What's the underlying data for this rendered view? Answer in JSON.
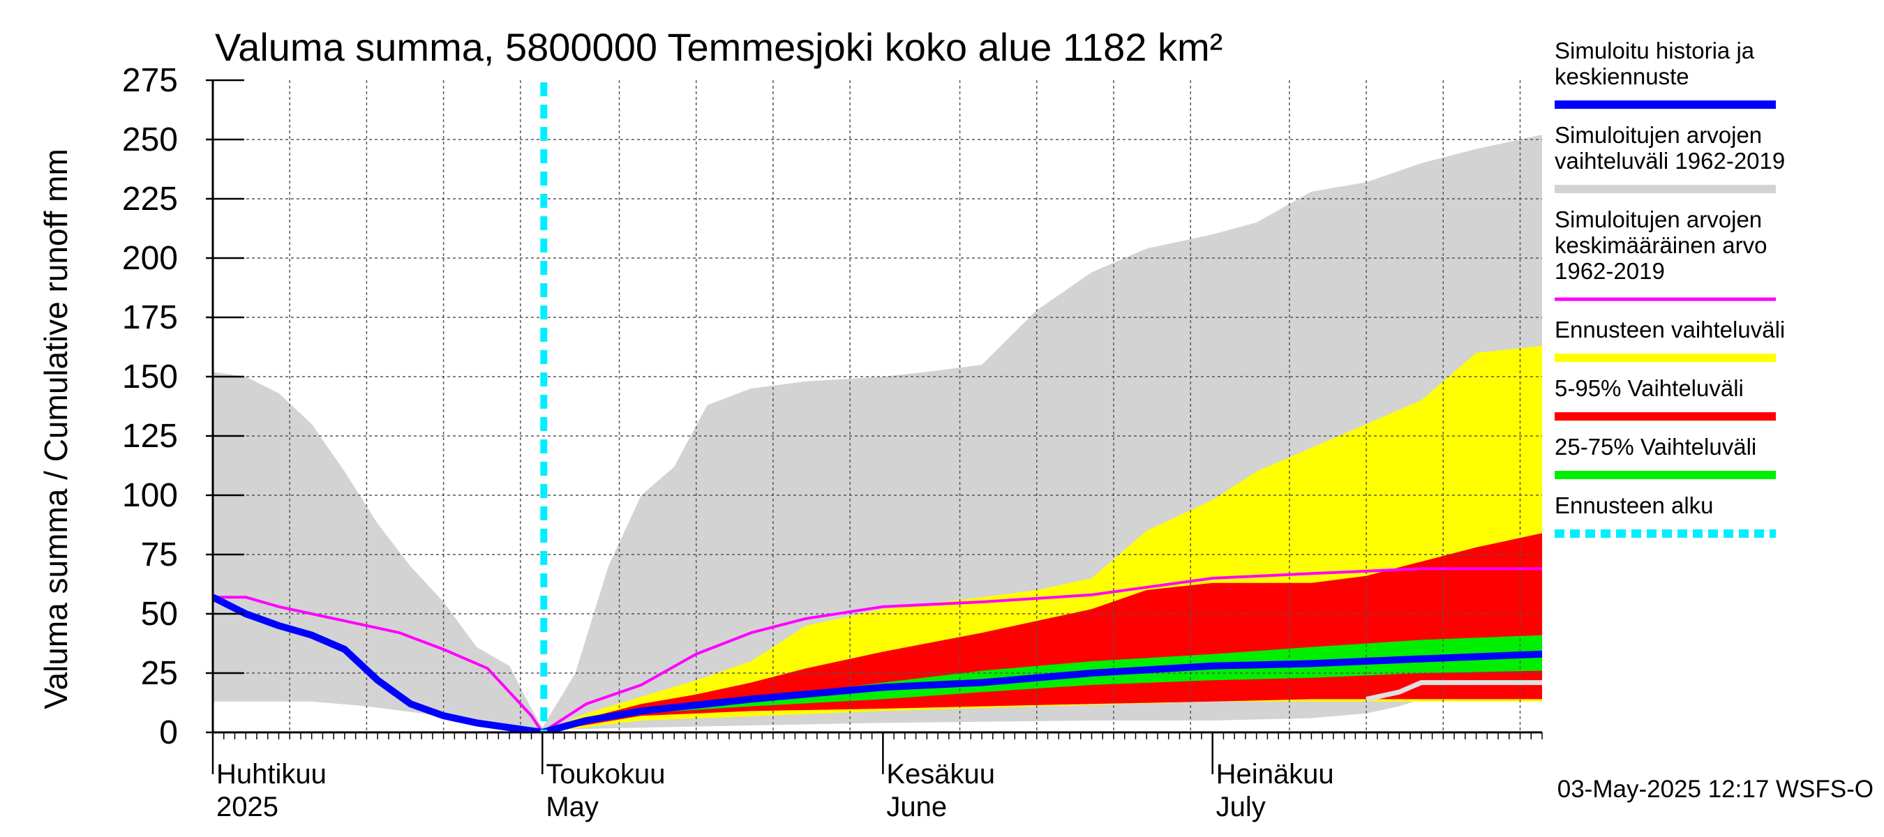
{
  "chart_data": {
    "type": "area",
    "title": "Valuma summa, 5800000 Temmesjoki koko alue 1182 km²",
    "ylabel": "Valuma summa / Cumulative runoff    mm",
    "ylim": [
      0,
      275
    ],
    "yticks": [
      0,
      25,
      50,
      75,
      100,
      125,
      150,
      175,
      200,
      225,
      250,
      275
    ],
    "xlim": [
      "2025-04-01",
      "2025-07-31"
    ],
    "grid": true,
    "legend_placement": "right",
    "month_labels": [
      {
        "date": "2025-04-01",
        "fi": "Huhtikuu",
        "en": "2025"
      },
      {
        "date": "2025-05-01",
        "fi": "Toukokuu",
        "en": "May"
      },
      {
        "date": "2025-06-01",
        "fi": "Kesäkuu",
        "en": "June"
      },
      {
        "date": "2025-07-01",
        "fi": "Heinäkuu",
        "en": "July"
      }
    ],
    "forecast_start": "2025-05-01",
    "footer": "03-May-2025 12:17 WSFS-O",
    "colors": {
      "sim_range": "#d3d3d3",
      "sim_mean": "#ff00ff",
      "forecast_range": "#ffff00",
      "p5_95": "#ff0000",
      "p25_75": "#00ee00",
      "simulated": "#0000ff",
      "forecast_start": "#00eeff",
      "grid": "#555555",
      "light_line": "#e0e0e0"
    },
    "legend": [
      {
        "key": "simulated",
        "lines": [
          "Simuloitu historia ja",
          "keskiennuste"
        ],
        "style": "solid"
      },
      {
        "key": "sim_range",
        "lines": [
          "Simuloitujen arvojen",
          "vaihteluväli 1962-2019"
        ],
        "style": "solid"
      },
      {
        "key": "sim_mean",
        "lines": [
          "Simuloitujen arvojen",
          "keskimääräinen arvo",
          "   1962-2019"
        ],
        "style": "thin"
      },
      {
        "key": "forecast_range",
        "lines": [
          "Ennusteen vaihteluväli"
        ],
        "style": "solid"
      },
      {
        "key": "p5_95",
        "lines": [
          "5-95% Vaihteluväli"
        ],
        "style": "solid"
      },
      {
        "key": "p25_75",
        "lines": [
          "25-75% Vaihteluväli"
        ],
        "style": "solid"
      },
      {
        "key": "forecast_start",
        "lines": [
          "Ennusteen alku"
        ],
        "style": "dashed"
      }
    ],
    "series": [
      {
        "key": "sim_range_upper",
        "x": [
          "2025-04-01",
          "2025-04-04",
          "2025-04-07",
          "2025-04-10",
          "2025-04-13",
          "2025-04-16",
          "2025-04-19",
          "2025-04-22",
          "2025-04-25",
          "2025-04-28",
          "2025-04-30",
          "2025-05-01",
          "2025-05-04",
          "2025-05-07",
          "2025-05-10",
          "2025-05-13",
          "2025-05-16",
          "2025-05-20",
          "2025-05-25",
          "2025-06-01",
          "2025-06-05",
          "2025-06-10",
          "2025-06-15",
          "2025-06-20",
          "2025-06-25",
          "2025-07-01",
          "2025-07-05",
          "2025-07-10",
          "2025-07-15",
          "2025-07-20",
          "2025-07-25",
          "2025-07-31"
        ],
        "values": [
          152,
          150,
          143,
          130,
          110,
          88,
          70,
          55,
          36,
          28,
          10,
          2,
          25,
          70,
          100,
          112,
          138,
          145,
          148,
          150,
          152,
          155,
          178,
          194,
          204,
          210,
          215,
          228,
          232,
          240,
          246,
          252
        ]
      },
      {
        "key": "sim_range_lower",
        "x": [
          "2025-04-01",
          "2025-04-10",
          "2025-04-15",
          "2025-04-20",
          "2025-04-25",
          "2025-04-30",
          "2025-05-01",
          "2025-05-10",
          "2025-06-01",
          "2025-06-20",
          "2025-07-01",
          "2025-07-10",
          "2025-07-15",
          "2025-07-18",
          "2025-07-20",
          "2025-07-25",
          "2025-07-31"
        ],
        "values": [
          13,
          13,
          11,
          8,
          4,
          1,
          1,
          2,
          4,
          5,
          5,
          6,
          8,
          11,
          14,
          17,
          17
        ]
      },
      {
        "key": "forecast_range_upper",
        "x": [
          "2025-05-01",
          "2025-05-05",
          "2025-05-10",
          "2025-05-15",
          "2025-05-20",
          "2025-05-25",
          "2025-06-01",
          "2025-06-10",
          "2025-06-15",
          "2025-06-20",
          "2025-06-25",
          "2025-07-01",
          "2025-07-05",
          "2025-07-10",
          "2025-07-15",
          "2025-07-20",
          "2025-07-25",
          "2025-07-31"
        ],
        "values": [
          0,
          8,
          15,
          22,
          30,
          45,
          52,
          57,
          60,
          65,
          85,
          98,
          110,
          120,
          130,
          140,
          160,
          163
        ]
      },
      {
        "key": "forecast_range_lower",
        "x": [
          "2025-05-01",
          "2025-05-10",
          "2025-06-01",
          "2025-06-15",
          "2025-07-01",
          "2025-07-31"
        ],
        "values": [
          0,
          5,
          9,
          11,
          13,
          13
        ]
      },
      {
        "key": "p5_95_upper",
        "x": [
          "2025-05-01",
          "2025-05-05",
          "2025-05-10",
          "2025-05-15",
          "2025-05-20",
          "2025-05-25",
          "2025-06-01",
          "2025-06-10",
          "2025-06-15",
          "2025-06-20",
          "2025-06-25",
          "2025-07-01",
          "2025-07-10",
          "2025-07-15",
          "2025-07-20",
          "2025-07-25",
          "2025-07-31"
        ],
        "values": [
          0,
          6,
          12,
          16,
          21,
          27,
          34,
          42,
          47,
          52,
          60,
          63,
          63,
          66,
          72,
          78,
          84
        ]
      },
      {
        "key": "p5_95_lower",
        "x": [
          "2025-05-01",
          "2025-05-10",
          "2025-05-20",
          "2025-06-01",
          "2025-06-10",
          "2025-06-20",
          "2025-07-01",
          "2025-07-10",
          "2025-07-20",
          "2025-07-31"
        ],
        "values": [
          0,
          7,
          9,
          10,
          11,
          12,
          13,
          14,
          14,
          14
        ]
      },
      {
        "key": "p25_75_upper",
        "x": [
          "2025-05-01",
          "2025-05-10",
          "2025-05-20",
          "2025-06-01",
          "2025-06-10",
          "2025-06-20",
          "2025-07-01",
          "2025-07-10",
          "2025-07-20",
          "2025-07-31"
        ],
        "values": [
          0,
          9,
          14,
          21,
          26,
          30,
          33,
          36,
          39,
          41
        ]
      },
      {
        "key": "p25_75_lower",
        "x": [
          "2025-05-01",
          "2025-05-10",
          "2025-05-20",
          "2025-06-01",
          "2025-06-10",
          "2025-06-20",
          "2025-07-01",
          "2025-07-10",
          "2025-07-20",
          "2025-07-31"
        ],
        "values": [
          0,
          8,
          11,
          14,
          17,
          20,
          22,
          23,
          25,
          26
        ]
      },
      {
        "key": "sim_mean",
        "x": [
          "2025-04-01",
          "2025-04-04",
          "2025-04-07",
          "2025-04-10",
          "2025-04-14",
          "2025-04-18",
          "2025-04-22",
          "2025-04-26",
          "2025-04-30",
          "2025-05-01",
          "2025-05-05",
          "2025-05-10",
          "2025-05-15",
          "2025-05-20",
          "2025-05-25",
          "2025-06-01",
          "2025-06-10",
          "2025-06-20",
          "2025-07-01",
          "2025-07-10",
          "2025-07-20",
          "2025-07-31"
        ],
        "values": [
          57,
          57,
          53,
          50,
          46,
          42,
          35,
          27,
          7,
          0,
          12,
          20,
          33,
          42,
          48,
          53,
          55,
          58,
          65,
          67,
          69,
          69
        ]
      },
      {
        "key": "simulated",
        "x": [
          "2025-04-01",
          "2025-04-04",
          "2025-04-07",
          "2025-04-10",
          "2025-04-13",
          "2025-04-16",
          "2025-04-19",
          "2025-04-22",
          "2025-04-25",
          "2025-04-28",
          "2025-05-01",
          "2025-05-05",
          "2025-05-10",
          "2025-05-20",
          "2025-06-01",
          "2025-06-10",
          "2025-06-20",
          "2025-07-01",
          "2025-07-10",
          "2025-07-20",
          "2025-07-31"
        ],
        "values": [
          57,
          50,
          45,
          41,
          35,
          22,
          12,
          7,
          4,
          2,
          0,
          5,
          9,
          14,
          19,
          21,
          25,
          28,
          29,
          31,
          33
        ]
      },
      {
        "key": "light_line",
        "x": [
          "2025-07-15",
          "2025-07-18",
          "2025-07-20",
          "2025-07-25",
          "2025-07-31"
        ],
        "values": [
          14,
          17,
          21,
          21,
          21
        ]
      }
    ]
  }
}
